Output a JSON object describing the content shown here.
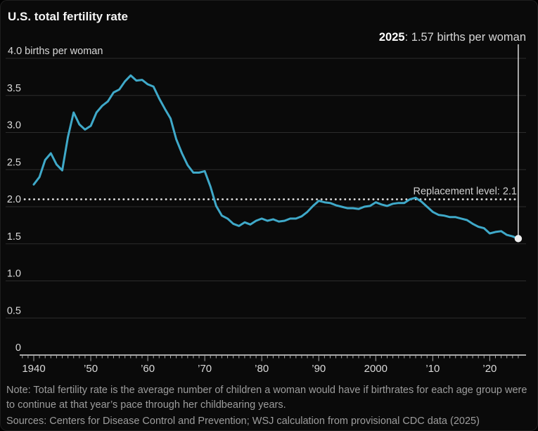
{
  "title": "U.S. total fertility rate",
  "annotation": {
    "year": "2025",
    "rest": ": 1.57 births per woman"
  },
  "note": "Note: Total fertility rate is the average number of children a woman would have if birthrates for each age group were to continue at that year’s pace through her childbearing years.",
  "sources": "Sources: Centers for Disease Control and Prevention; WSJ calculation from provisional CDC data (2025)",
  "chart_data": {
    "type": "line",
    "title": "U.S. total fertility rate",
    "ylabel": "births per woman",
    "series_name": "U.S. total fertility rate",
    "xlim": [
      1940,
      2025
    ],
    "ylim": [
      0,
      4.0
    ],
    "grid": "horizontal",
    "years": [
      1940,
      1941,
      1942,
      1943,
      1944,
      1945,
      1946,
      1947,
      1948,
      1949,
      1950,
      1951,
      1952,
      1953,
      1954,
      1955,
      1956,
      1957,
      1958,
      1959,
      1960,
      1961,
      1962,
      1963,
      1964,
      1965,
      1966,
      1967,
      1968,
      1969,
      1970,
      1971,
      1972,
      1973,
      1974,
      1975,
      1976,
      1977,
      1978,
      1979,
      1980,
      1981,
      1982,
      1983,
      1984,
      1985,
      1986,
      1987,
      1988,
      1989,
      1990,
      1991,
      1992,
      1993,
      1994,
      1995,
      1996,
      1997,
      1998,
      1999,
      2000,
      2001,
      2002,
      2003,
      2004,
      2005,
      2006,
      2007,
      2008,
      2009,
      2010,
      2011,
      2012,
      2013,
      2014,
      2015,
      2016,
      2017,
      2018,
      2019,
      2020,
      2021,
      2022,
      2023,
      2024,
      2025
    ],
    "values": [
      2.3,
      2.4,
      2.63,
      2.72,
      2.57,
      2.49,
      2.94,
      3.27,
      3.11,
      3.04,
      3.09,
      3.27,
      3.36,
      3.42,
      3.54,
      3.58,
      3.69,
      3.77,
      3.7,
      3.71,
      3.65,
      3.62,
      3.46,
      3.32,
      3.19,
      2.91,
      2.72,
      2.56,
      2.46,
      2.46,
      2.48,
      2.27,
      2.01,
      1.88,
      1.84,
      1.77,
      1.74,
      1.79,
      1.76,
      1.81,
      1.84,
      1.81,
      1.83,
      1.8,
      1.81,
      1.84,
      1.84,
      1.87,
      1.93,
      2.01,
      2.08,
      2.06,
      2.05,
      2.02,
      2.0,
      1.98,
      1.98,
      1.97,
      2.0,
      2.01,
      2.06,
      2.03,
      2.01,
      2.04,
      2.05,
      2.05,
      2.1,
      2.12,
      2.07,
      2.0,
      1.93,
      1.89,
      1.88,
      1.86,
      1.86,
      1.84,
      1.82,
      1.77,
      1.73,
      1.71,
      1.64,
      1.66,
      1.67,
      1.62,
      1.6,
      1.57
    ],
    "yticks": [
      {
        "v": 4.0,
        "label": "4.0 births per woman"
      },
      {
        "v": 3.5,
        "label": "3.5"
      },
      {
        "v": 3.0,
        "label": "3.0"
      },
      {
        "v": 2.5,
        "label": "2.5"
      },
      {
        "v": 2.0,
        "label": "2.0"
      },
      {
        "v": 1.5,
        "label": "1.5"
      },
      {
        "v": 1.0,
        "label": "1.0"
      },
      {
        "v": 0.5,
        "label": "0.5"
      },
      {
        "v": 0,
        "label": "0"
      }
    ],
    "xticks": [
      {
        "year": 1940,
        "label": "1940"
      },
      {
        "year": 1950,
        "label": "’50"
      },
      {
        "year": 1960,
        "label": "’60"
      },
      {
        "year": 1970,
        "label": "’70"
      },
      {
        "year": 1980,
        "label": "’80"
      },
      {
        "year": 1990,
        "label": "’90"
      },
      {
        "year": 2000,
        "label": "2000"
      },
      {
        "year": 2010,
        "label": "’10"
      },
      {
        "year": 2020,
        "label": "’20"
      }
    ],
    "replacement_level": {
      "value": 2.1,
      "label": "Replacement level: 2.1"
    },
    "endpoint": {
      "year": 2025,
      "value": 1.57
    },
    "colors": {
      "background": "#0a0a0a",
      "line": "#3fa9c9",
      "grid": "#2c2c2c",
      "axis": "#a8a8a8",
      "dotted_line": "#e3e3e3",
      "annotation_line": "#dcdcdc",
      "endpoint_dot": "#efefef",
      "tick_label": "#d9d9d9",
      "replacement_label": "#d0d0d0",
      "note_text": "#9d9d9d",
      "title_text": "#f5f5f5"
    }
  }
}
